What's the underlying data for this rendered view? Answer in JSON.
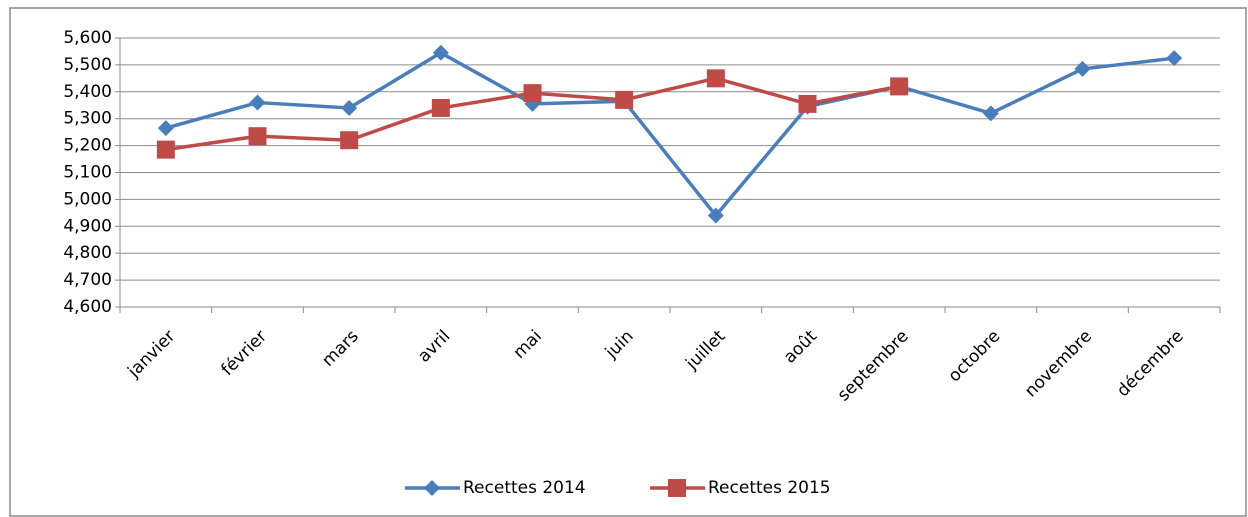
{
  "chart_data": {
    "type": "line",
    "categories": [
      "janvier",
      "février",
      "mars",
      "avril",
      "mai",
      "juin",
      "juillet",
      "août",
      "septembre",
      "octobre",
      "novembre",
      "décembre"
    ],
    "series": [
      {
        "name": "Recettes 2014",
        "color": "#4a7ebb",
        "marker": "diamond",
        "values": [
          5265,
          5360,
          5340,
          5545,
          5355,
          5365,
          4940,
          5345,
          5420,
          5320,
          5485,
          5525
        ]
      },
      {
        "name": "Recettes 2015",
        "color": "#be4b48",
        "marker": "square",
        "values": [
          5185,
          5235,
          5220,
          5340,
          5395,
          5370,
          5450,
          5355,
          5420,
          null,
          null,
          null
        ]
      }
    ],
    "ylim": [
      4600,
      5600
    ],
    "yticks": [
      {
        "value": 4600,
        "label": "4,600"
      },
      {
        "value": 4700,
        "label": "4,700"
      },
      {
        "value": 4800,
        "label": "4,800"
      },
      {
        "value": 4900,
        "label": "4,900"
      },
      {
        "value": 5000,
        "label": "5,000"
      },
      {
        "value": 5100,
        "label": "5,100"
      },
      {
        "value": 5200,
        "label": "5,200"
      },
      {
        "value": 5300,
        "label": "5,300"
      },
      {
        "value": 5400,
        "label": "5,400"
      },
      {
        "value": 5500,
        "label": "5,500"
      },
      {
        "value": 5600,
        "label": "5,600"
      }
    ],
    "grid": true,
    "legend": "bottom"
  }
}
